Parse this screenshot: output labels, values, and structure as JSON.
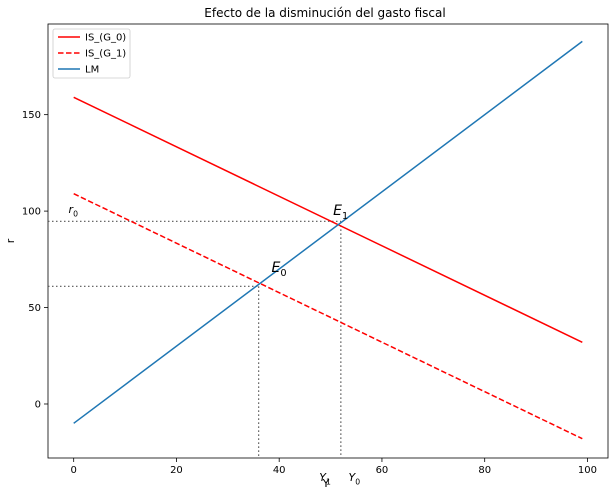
{
  "chart_data": {
    "type": "line",
    "title": "Efecto de la disminución del gasto fiscal",
    "xlabel": "Y",
    "ylabel": "r",
    "xlim": [
      -5,
      104
    ],
    "ylim": [
      -28,
      197
    ],
    "xticks": [
      0,
      20,
      40,
      60,
      80,
      100
    ],
    "yticks": [
      0,
      50,
      100,
      150
    ],
    "grid": false,
    "legend": "top-left",
    "series": [
      {
        "name": "IS_(G_0)",
        "color": "#ff0000",
        "dash": "solid",
        "x": [
          0,
          99
        ],
        "y": [
          159,
          32
        ]
      },
      {
        "name": "IS_(G_1)",
        "color": "#ff0000",
        "dash": "dashed",
        "x": [
          0,
          99
        ],
        "y": [
          109,
          -18
        ]
      },
      {
        "name": "LM",
        "color": "#1f77b4",
        "dash": "solid",
        "x": [
          0,
          99
        ],
        "y": [
          -10,
          188
        ]
      }
    ],
    "guides": [
      {
        "x": 52,
        "y": 94.7
      },
      {
        "x": 36,
        "y": 61
      }
    ],
    "annotations": [
      {
        "base": "E",
        "sub": "1",
        "x": 50.5,
        "y": 98,
        "size": "large",
        "color": "#000000"
      },
      {
        "base": "E",
        "sub": "0",
        "x": 38.5,
        "y": 68.5,
        "size": "large",
        "color": "#000000"
      },
      {
        "base": "r",
        "sub": "0",
        "x": -1,
        "y": 99,
        "size": "small",
        "color": "#000000"
      },
      {
        "base": "Y",
        "sub": "1",
        "x": 47.8,
        "y": -40,
        "size": "small",
        "color": "#3a6cb4"
      },
      {
        "base": "Y",
        "sub": "0",
        "x": 53.5,
        "y": -40,
        "size": "small",
        "color": "#000000"
      }
    ]
  }
}
